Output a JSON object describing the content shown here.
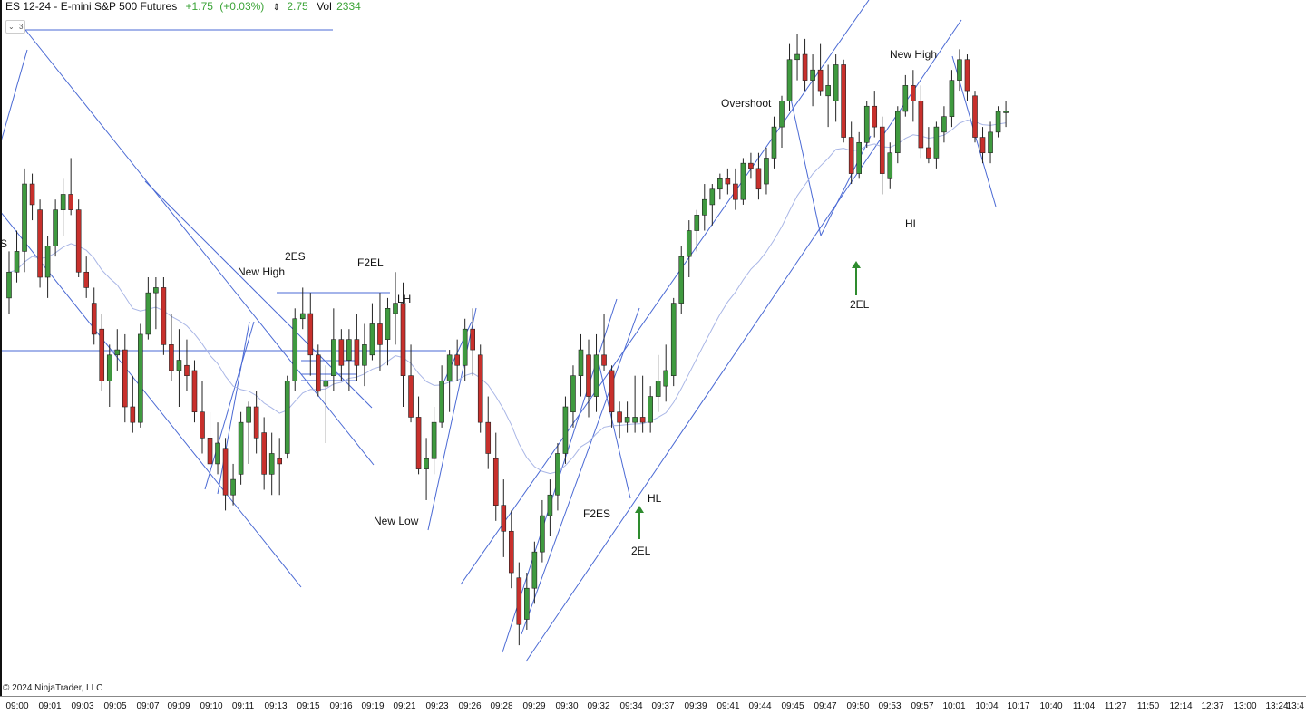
{
  "header": {
    "symbol": "ES 12-24 - E-mini S&P 500 Futures",
    "change": "+1.75",
    "change_pct": "(+0.03%)",
    "range_icon": "up-down-arrow-icon",
    "range": "2.75",
    "vol_label": "Vol",
    "volume": "2334"
  },
  "collapse_label": "3",
  "left_label": "S",
  "copyright": "© 2024 NinjaTrader, LLC",
  "colors": {
    "bull": "#3f9a3f",
    "bear": "#c8302c",
    "trendline": "#4a69d4",
    "ema": "#a9b6e6",
    "arrow": "#2e8b2e"
  },
  "chart_data": {
    "type": "candlestick",
    "title": "ES 12-24 - E-mini S&P 500 Futures",
    "x_tick_labels": [
      "09:00",
      "09:01",
      "09:03",
      "09:05",
      "09:07",
      "09:09",
      "09:10",
      "09:11",
      "09:13",
      "09:15",
      "09:16",
      "09:19",
      "09:21",
      "09:23",
      "09:26",
      "09:28",
      "09:29",
      "09:30",
      "09:32",
      "09:34",
      "09:37",
      "09:39",
      "09:41",
      "09:44",
      "09:45",
      "09:47",
      "09:50",
      "09:53",
      "09:57",
      "10:01",
      "10:04",
      "10:17",
      "10:40",
      "11:04",
      "11:27",
      "11:50",
      "12:14",
      "12:37",
      "13:00",
      "13:24",
      "13:4"
    ],
    "price_range": [
      0,
      100
    ],
    "candles": [
      [
        0,
        71,
        80,
        68,
        76
      ],
      [
        1,
        76,
        84,
        74,
        80
      ],
      [
        2,
        80,
        96,
        76,
        93
      ],
      [
        3,
        93,
        95,
        86,
        89
      ],
      [
        4,
        88,
        90,
        73,
        75
      ],
      [
        5,
        75,
        83,
        71,
        81
      ],
      [
        6,
        81,
        90,
        79,
        88
      ],
      [
        7,
        88,
        94,
        83,
        91
      ],
      [
        8,
        91,
        98,
        87,
        88
      ],
      [
        9,
        88,
        90,
        75,
        76
      ],
      [
        10,
        76,
        79,
        71,
        73
      ],
      [
        11,
        70,
        73,
        62,
        64
      ],
      [
        12,
        65,
        68,
        53,
        55
      ],
      [
        13,
        55,
        62,
        50,
        60
      ],
      [
        14,
        60,
        65,
        57,
        61
      ],
      [
        15,
        61,
        64,
        47,
        50
      ],
      [
        16,
        50,
        56,
        45,
        47
      ],
      [
        17,
        47,
        66,
        46,
        64
      ],
      [
        18,
        64,
        75,
        63,
        72
      ],
      [
        19,
        72,
        75,
        65,
        73
      ],
      [
        20,
        73,
        75,
        60,
        62
      ],
      [
        21,
        62,
        68,
        55,
        57
      ],
      [
        22,
        57,
        65,
        50,
        59
      ],
      [
        23,
        58,
        63,
        53,
        56
      ],
      [
        24,
        57,
        59,
        47,
        49
      ],
      [
        25,
        49,
        55,
        41,
        44
      ],
      [
        26,
        44,
        49,
        35,
        39
      ],
      [
        27,
        39,
        47,
        37,
        43
      ],
      [
        28,
        42,
        44,
        30,
        33
      ],
      [
        29,
        33,
        39,
        31,
        36
      ],
      [
        30,
        37,
        49,
        35,
        47
      ],
      [
        31,
        47,
        51,
        39,
        50
      ],
      [
        32,
        50,
        53,
        41,
        44
      ],
      [
        33,
        45,
        48,
        34,
        37
      ],
      [
        34,
        37,
        45,
        33,
        41
      ],
      [
        35,
        40,
        44,
        33,
        39
      ],
      [
        36,
        41,
        56,
        40,
        55
      ],
      [
        37,
        55,
        69,
        53,
        67
      ],
      [
        38,
        67,
        73,
        65,
        68
      ],
      [
        39,
        68,
        72,
        56,
        60
      ],
      [
        40,
        60,
        62,
        52,
        53
      ],
      [
        41,
        54,
        58,
        43,
        55
      ],
      [
        42,
        56,
        69,
        53,
        63
      ],
      [
        43,
        63,
        65,
        55,
        58
      ],
      [
        44,
        59,
        65,
        53,
        63
      ],
      [
        45,
        63,
        68,
        55,
        58
      ],
      [
        46,
        58,
        66,
        54,
        62
      ],
      [
        47,
        60,
        70,
        59,
        66
      ],
      [
        48,
        66,
        72,
        57,
        62
      ],
      [
        49,
        63,
        71,
        58,
        69
      ],
      [
        50,
        68,
        76,
        62,
        70
      ],
      [
        51,
        70,
        74,
        50,
        56
      ],
      [
        52,
        56,
        62,
        47,
        48
      ],
      [
        53,
        48,
        52,
        37,
        38
      ],
      [
        54,
        38,
        44,
        32,
        40
      ],
      [
        55,
        40,
        50,
        37,
        47
      ],
      [
        56,
        47,
        58,
        46,
        55
      ],
      [
        57,
        55,
        61,
        49,
        60
      ],
      [
        58,
        60,
        63,
        55,
        58
      ],
      [
        59,
        58,
        67,
        55,
        65
      ],
      [
        60,
        65,
        69,
        56,
        61
      ],
      [
        61,
        60,
        62,
        45,
        47
      ],
      [
        62,
        47,
        52,
        38,
        41
      ],
      [
        63,
        40,
        45,
        28,
        31
      ],
      [
        64,
        31,
        36,
        21,
        26
      ],
      [
        65,
        26,
        30,
        15,
        18
      ],
      [
        66,
        17,
        20,
        4,
        8
      ],
      [
        67,
        9,
        18,
        7,
        15
      ],
      [
        68,
        15,
        24,
        12,
        22
      ],
      [
        69,
        22,
        32,
        20,
        29
      ],
      [
        70,
        29,
        36,
        25,
        33
      ],
      [
        71,
        33,
        43,
        30,
        41
      ],
      [
        72,
        41,
        52,
        39,
        50
      ],
      [
        73,
        49,
        58,
        46,
        56
      ],
      [
        74,
        56,
        64,
        52,
        61
      ],
      [
        75,
        60,
        63,
        48,
        52
      ],
      [
        76,
        52,
        64,
        49,
        60
      ],
      [
        77,
        60,
        68,
        57,
        58
      ],
      [
        78,
        57,
        58,
        46,
        49
      ],
      [
        79,
        49,
        51,
        44,
        47
      ],
      [
        80,
        47,
        51,
        45,
        48
      ],
      [
        81,
        47,
        56,
        45,
        48
      ],
      [
        82,
        48,
        56,
        45,
        47
      ],
      [
        83,
        47,
        54,
        45,
        52
      ],
      [
        84,
        52,
        60,
        49,
        55
      ],
      [
        85,
        54,
        62,
        51,
        57
      ],
      [
        86,
        56,
        71,
        54,
        70
      ],
      [
        87,
        70,
        81,
        68,
        79
      ],
      [
        88,
        79,
        86,
        75,
        84
      ],
      [
        89,
        84,
        88,
        80,
        87
      ],
      [
        90,
        87,
        93,
        84,
        90
      ],
      [
        91,
        89,
        93,
        85,
        92
      ],
      [
        92,
        92,
        95,
        90,
        94
      ],
      [
        93,
        94,
        96,
        91,
        93
      ],
      [
        94,
        93,
        96,
        88,
        90
      ],
      [
        95,
        90,
        98,
        89,
        97
      ],
      [
        96,
        97,
        99,
        94,
        96
      ],
      [
        97,
        96,
        99,
        90,
        92
      ],
      [
        98,
        93,
        100,
        91,
        98
      ],
      [
        99,
        98,
        106,
        96,
        104
      ],
      [
        100,
        104,
        110,
        100,
        109
      ],
      [
        101,
        109,
        120,
        107,
        117
      ],
      [
        102,
        117,
        122,
        113,
        118
      ],
      [
        103,
        118,
        121,
        111,
        113
      ],
      [
        104,
        113,
        118,
        108,
        115
      ],
      [
        105,
        115,
        120,
        110,
        111
      ],
      [
        106,
        110,
        116,
        104,
        112
      ],
      [
        107,
        109,
        118,
        105,
        116
      ],
      [
        108,
        116,
        117,
        101,
        102
      ],
      [
        109,
        102,
        105,
        93,
        95
      ],
      [
        110,
        95,
        103,
        94,
        101
      ],
      [
        111,
        101,
        109,
        100,
        108
      ],
      [
        112,
        108,
        111,
        102,
        104
      ],
      [
        113,
        104,
        106,
        91,
        95
      ],
      [
        114,
        94,
        101,
        92,
        99
      ],
      [
        115,
        99,
        108,
        97,
        107
      ],
      [
        116,
        107,
        114,
        106,
        112
      ],
      [
        117,
        112,
        115,
        105,
        109
      ],
      [
        118,
        109,
        112,
        98,
        100
      ],
      [
        119,
        100,
        104,
        97,
        98
      ],
      [
        120,
        98,
        105,
        96,
        104
      ],
      [
        121,
        103,
        108,
        101,
        106
      ],
      [
        122,
        106,
        115,
        104,
        113
      ],
      [
        123,
        113,
        119,
        111,
        117
      ],
      [
        124,
        117,
        118,
        109,
        111
      ],
      [
        125,
        110,
        111,
        101,
        102
      ],
      [
        126,
        102,
        104,
        97,
        99
      ],
      [
        127,
        99,
        105,
        97,
        103
      ],
      [
        128,
        103,
        108,
        102,
        107
      ],
      [
        129,
        107,
        109,
        104,
        107
      ]
    ],
    "annotations": [
      "New High",
      "2ES",
      "F2EL",
      "LH",
      "New Low",
      "F2ES",
      "HL",
      "2EL",
      "Overshoot",
      "New High",
      "HL",
      "2EL"
    ]
  },
  "labels": {
    "new_high_1": "New High",
    "es2": "2ES",
    "f2el": "F2EL",
    "lh": "LH",
    "new_low": "New Low",
    "f2es": "F2ES",
    "hl_1": "HL",
    "el2_1": "2EL",
    "overshoot": "Overshoot",
    "new_high_2": "New High",
    "hl_2": "HL",
    "el2_2": "2EL"
  }
}
